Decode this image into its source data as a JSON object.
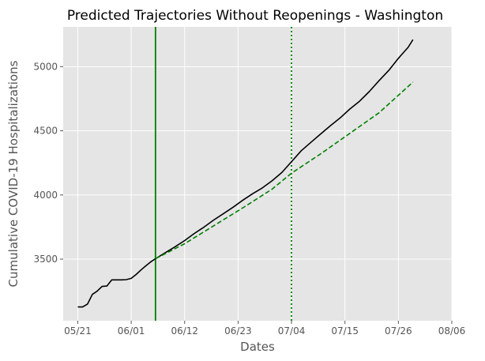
{
  "chart_data": {
    "type": "line",
    "title": "Predicted Trajectories Without Reopenings - Washington",
    "xlabel": "Dates",
    "ylabel": "Cumulative COVID-19 Hospitalizations",
    "x_ticks": [
      {
        "date": "2020-05-21",
        "label": "05/21"
      },
      {
        "date": "2020-06-01",
        "label": "06/01"
      },
      {
        "date": "2020-06-12",
        "label": "06/12"
      },
      {
        "date": "2020-06-23",
        "label": "06/23"
      },
      {
        "date": "2020-07-04",
        "label": "07/04"
      },
      {
        "date": "2020-07-15",
        "label": "07/15"
      },
      {
        "date": "2020-07-26",
        "label": "07/26"
      },
      {
        "date": "2020-08-06",
        "label": "08/06"
      }
    ],
    "xlim": [
      "2020-05-18",
      "2020-08-06"
    ],
    "ylim": [
      3020,
      5310
    ],
    "y_ticks": [
      3500,
      4000,
      4500,
      5000
    ],
    "grid": true,
    "background": "#e5e5e5",
    "series": [
      {
        "color": "#000000",
        "style": "solid",
        "points": [
          [
            "2020-05-21",
            3127
          ],
          [
            "2020-05-22",
            3127
          ],
          [
            "2020-05-23",
            3150
          ],
          [
            "2020-05-24",
            3225
          ],
          [
            "2020-05-25",
            3250
          ],
          [
            "2020-05-26",
            3287
          ],
          [
            "2020-05-27",
            3290
          ],
          [
            "2020-05-28",
            3338
          ],
          [
            "2020-05-29",
            3338
          ],
          [
            "2020-05-30",
            3338
          ],
          [
            "2020-05-31",
            3340
          ],
          [
            "2020-06-01",
            3350
          ],
          [
            "2020-06-02",
            3380
          ],
          [
            "2020-06-03",
            3415
          ],
          [
            "2020-06-04",
            3448
          ],
          [
            "2020-06-05",
            3478
          ],
          [
            "2020-06-06",
            3503
          ],
          [
            "2020-06-08",
            3550
          ],
          [
            "2020-06-10",
            3595
          ],
          [
            "2020-06-12",
            3645
          ],
          [
            "2020-06-14",
            3700
          ],
          [
            "2020-06-16",
            3750
          ],
          [
            "2020-06-18",
            3805
          ],
          [
            "2020-06-20",
            3855
          ],
          [
            "2020-06-22",
            3905
          ],
          [
            "2020-06-24",
            3960
          ],
          [
            "2020-06-26",
            4010
          ],
          [
            "2020-06-28",
            4055
          ],
          [
            "2020-06-30",
            4110
          ],
          [
            "2020-07-02",
            4175
          ],
          [
            "2020-07-04",
            4260
          ],
          [
            "2020-07-06",
            4345
          ],
          [
            "2020-07-08",
            4410
          ],
          [
            "2020-07-10",
            4475
          ],
          [
            "2020-07-12",
            4540
          ],
          [
            "2020-07-14",
            4600
          ],
          [
            "2020-07-16",
            4670
          ],
          [
            "2020-07-18",
            4730
          ],
          [
            "2020-07-20",
            4805
          ],
          [
            "2020-07-22",
            4890
          ],
          [
            "2020-07-24",
            4970
          ],
          [
            "2020-07-26",
            5065
          ],
          [
            "2020-07-28",
            5150
          ],
          [
            "2020-07-29",
            5210
          ]
        ]
      },
      {
        "color": "#008000",
        "style": "dashed",
        "points": [
          [
            "2020-06-06",
            3503
          ],
          [
            "2020-06-12",
            3620
          ],
          [
            "2020-06-18",
            3760
          ],
          [
            "2020-06-24",
            3900
          ],
          [
            "2020-06-30",
            4045
          ],
          [
            "2020-07-04",
            4170
          ],
          [
            "2020-07-10",
            4320
          ],
          [
            "2020-07-16",
            4480
          ],
          [
            "2020-07-22",
            4640
          ],
          [
            "2020-07-29",
            4880
          ]
        ]
      }
    ],
    "vertical_lines": [
      {
        "date": "2020-06-06",
        "color": "#008000",
        "style": "solid"
      },
      {
        "date": "2020-07-04",
        "color": "#008000",
        "style": "dotted"
      }
    ]
  }
}
